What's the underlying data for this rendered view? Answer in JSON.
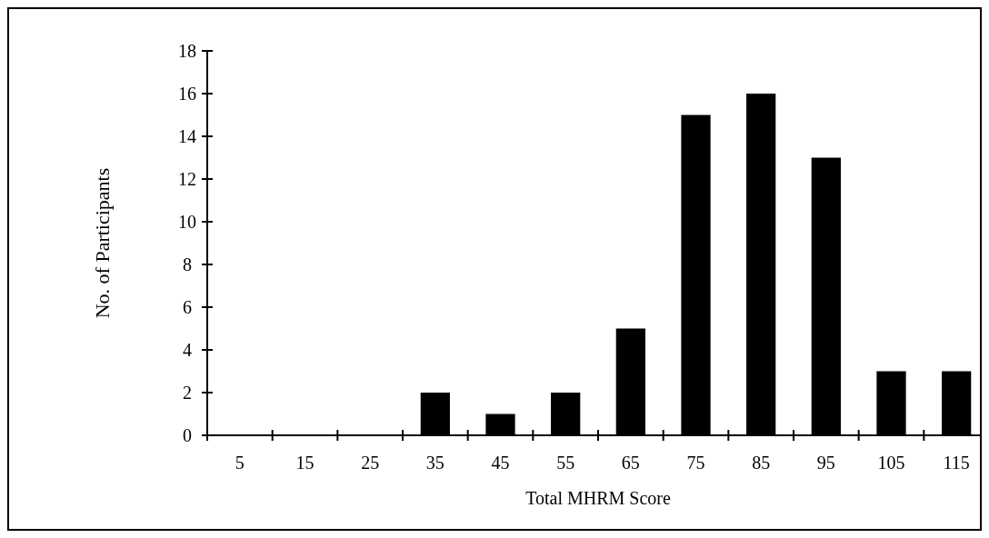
{
  "chart_data": {
    "type": "bar",
    "xlabel": "Total MHRM Score",
    "ylabel": "No. of Participants",
    "categories": [
      "5",
      "15",
      "25",
      "35",
      "45",
      "55",
      "65",
      "75",
      "85",
      "95",
      "105",
      "115"
    ],
    "values": [
      0,
      0,
      0,
      2,
      1,
      2,
      5,
      15,
      16,
      13,
      3,
      3
    ],
    "color": "#000000",
    "ylim": [
      0,
      18
    ],
    "yticks": [
      0,
      2,
      4,
      6,
      8,
      10,
      12,
      14,
      16,
      18
    ]
  }
}
